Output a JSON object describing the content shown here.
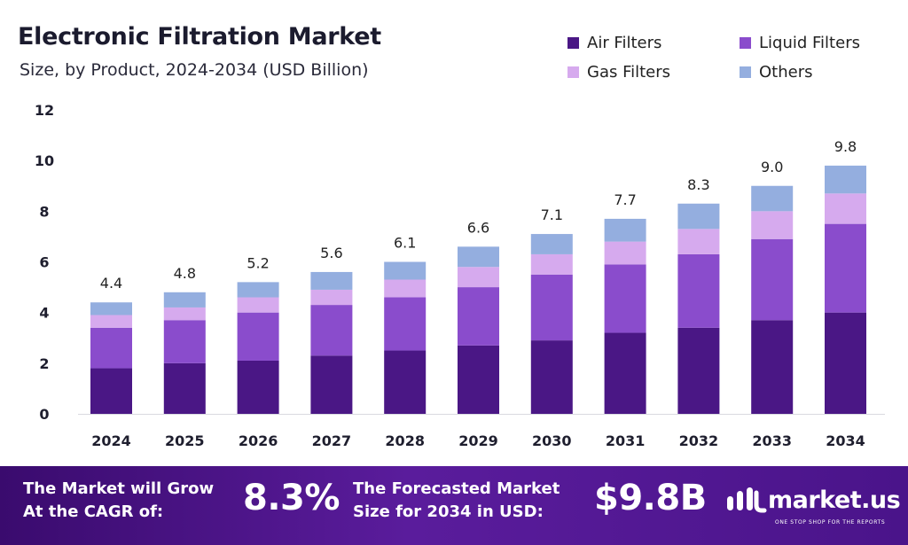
{
  "header": {
    "title": "Electronic Filtration Market",
    "subtitle": "Size, by Product, 2024-2034 (USD Billion)"
  },
  "legend": [
    {
      "label": "Air Filters",
      "color": "#4a1785"
    },
    {
      "label": "Liquid Filters",
      "color": "#8a4ccc"
    },
    {
      "label": "Gas Filters",
      "color": "#d6aaee"
    },
    {
      "label": "Others",
      "color": "#94aedf"
    }
  ],
  "chart_data": {
    "type": "bar",
    "stacked": true,
    "categories": [
      "2024",
      "2025",
      "2026",
      "2027",
      "2028",
      "2029",
      "2030",
      "2031",
      "2032",
      "2033",
      "2034"
    ],
    "series": [
      {
        "name": "Air Filters",
        "color": "#4a1785",
        "values": [
          1.8,
          2.0,
          2.1,
          2.3,
          2.5,
          2.7,
          2.9,
          3.2,
          3.4,
          3.7,
          4.0
        ]
      },
      {
        "name": "Liquid Filters",
        "color": "#8a4ccc",
        "values": [
          1.6,
          1.7,
          1.9,
          2.0,
          2.1,
          2.3,
          2.6,
          2.7,
          2.9,
          3.2,
          3.5
        ]
      },
      {
        "name": "Gas Filters",
        "color": "#d6aaee",
        "values": [
          0.5,
          0.5,
          0.6,
          0.6,
          0.7,
          0.8,
          0.8,
          0.9,
          1.0,
          1.1,
          1.2
        ]
      },
      {
        "name": "Others",
        "color": "#94aedf",
        "values": [
          0.5,
          0.6,
          0.6,
          0.7,
          0.7,
          0.8,
          0.8,
          0.9,
          1.0,
          1.0,
          1.1
        ]
      }
    ],
    "totals": [
      "4.4",
      "4.8",
      "5.2",
      "5.6",
      "6.1",
      "6.6",
      "7.1",
      "7.7",
      "8.3",
      "9.0",
      "9.8"
    ],
    "yticks": [
      0,
      2,
      4,
      6,
      8,
      10,
      12
    ],
    "ylim": [
      0,
      12
    ],
    "xlabel": "",
    "ylabel": "",
    "grid": false,
    "legend_position": "top-right"
  },
  "footer": {
    "cagr_label_line1": "The Market will Grow",
    "cagr_label_line2": "At the CAGR of:",
    "cagr_value": "8.3%",
    "forecast_label_line1": "The Forecasted Market",
    "forecast_label_line2": "Size for 2034 in USD:",
    "forecast_value": "$9.8B",
    "brand_name": "market.us",
    "brand_tagline": "ONE STOP SHOP FOR THE REPORTS"
  }
}
